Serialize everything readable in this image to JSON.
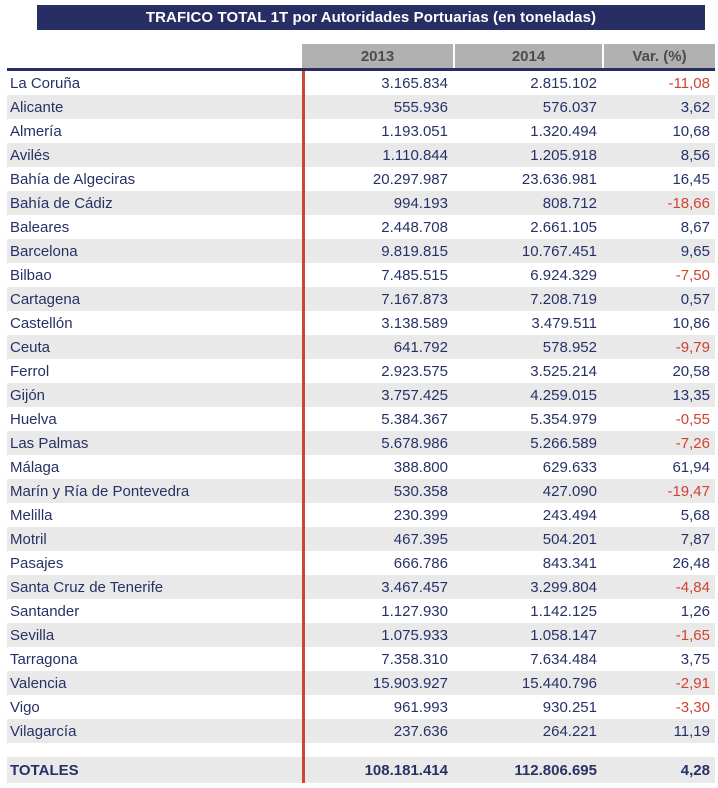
{
  "title": "TRAFICO TOTAL 1T por Autoridades Portuarias (en toneladas)",
  "table": {
    "columns": [
      "2013",
      "2014",
      "Var. (%)"
    ],
    "rows": [
      {
        "name": "La Coruña",
        "y2013": "3.165.834",
        "y2014": "2.815.102",
        "var": "-11,08"
      },
      {
        "name": "Alicante",
        "y2013": "555.936",
        "y2014": "576.037",
        "var": "3,62"
      },
      {
        "name": "Almería",
        "y2013": "1.193.051",
        "y2014": "1.320.494",
        "var": "10,68"
      },
      {
        "name": "Avilés",
        "y2013": "1.110.844",
        "y2014": "1.205.918",
        "var": "8,56"
      },
      {
        "name": "Bahía de Algeciras",
        "y2013": "20.297.987",
        "y2014": "23.636.981",
        "var": "16,45"
      },
      {
        "name": "Bahía de Cádiz",
        "y2013": "994.193",
        "y2014": "808.712",
        "var": "-18,66"
      },
      {
        "name": "Baleares",
        "y2013": "2.448.708",
        "y2014": "2.661.105",
        "var": "8,67"
      },
      {
        "name": "Barcelona",
        "y2013": "9.819.815",
        "y2014": "10.767.451",
        "var": "9,65"
      },
      {
        "name": "Bilbao",
        "y2013": "7.485.515",
        "y2014": "6.924.329",
        "var": "-7,50"
      },
      {
        "name": "Cartagena",
        "y2013": "7.167.873",
        "y2014": "7.208.719",
        "var": "0,57"
      },
      {
        "name": "Castellón",
        "y2013": "3.138.589",
        "y2014": "3.479.511",
        "var": "10,86"
      },
      {
        "name": "Ceuta",
        "y2013": "641.792",
        "y2014": "578.952",
        "var": "-9,79"
      },
      {
        "name": "Ferrol",
        "y2013": "2.923.575",
        "y2014": "3.525.214",
        "var": "20,58"
      },
      {
        "name": "Gijón",
        "y2013": "3.757.425",
        "y2014": "4.259.015",
        "var": "13,35"
      },
      {
        "name": "Huelva",
        "y2013": "5.384.367",
        "y2014": "5.354.979",
        "var": "-0,55"
      },
      {
        "name": "Las Palmas",
        "y2013": "5.678.986",
        "y2014": "5.266.589",
        "var": "-7,26"
      },
      {
        "name": "Málaga",
        "y2013": "388.800",
        "y2014": "629.633",
        "var": "61,94"
      },
      {
        "name": "Marín y Ría de Pontevedra",
        "y2013": "530.358",
        "y2014": "427.090",
        "var": "-19,47"
      },
      {
        "name": "Melilla",
        "y2013": "230.399",
        "y2014": "243.494",
        "var": "5,68"
      },
      {
        "name": "Motril",
        "y2013": "467.395",
        "y2014": "504.201",
        "var": "7,87"
      },
      {
        "name": "Pasajes",
        "y2013": "666.786",
        "y2014": "843.341",
        "var": "26,48"
      },
      {
        "name": "Santa Cruz de Tenerife",
        "y2013": "3.467.457",
        "y2014": "3.299.804",
        "var": "-4,84"
      },
      {
        "name": "Santander",
        "y2013": "1.127.930",
        "y2014": "1.142.125",
        "var": "1,26"
      },
      {
        "name": "Sevilla",
        "y2013": "1.075.933",
        "y2014": "1.058.147",
        "var": "-1,65"
      },
      {
        "name": "Tarragona",
        "y2013": "7.358.310",
        "y2014": "7.634.484",
        "var": "3,75"
      },
      {
        "name": "Valencia",
        "y2013": "15.903.927",
        "y2014": "15.440.796",
        "var": "-2,91"
      },
      {
        "name": "Vigo",
        "y2013": "961.993",
        "y2014": "930.251",
        "var": "-3,30"
      },
      {
        "name": "Vilagarcía",
        "y2013": "237.636",
        "y2014": "264.221",
        "var": "11,19"
      }
    ],
    "totals": {
      "label": "TOTALES",
      "y2013": "108.181.414",
      "y2014": "112.806.695",
      "var": "4,28"
    }
  },
  "colors": {
    "title_bg": "#262e64",
    "navy_rule": "#262e64",
    "navy_text": "#273166",
    "negative_red": "#d04232",
    "divider_red": "#cf4433",
    "header_bg": "#b1b1b1",
    "header_text": "#4d4d4d",
    "alt_row_bg": "#e9e9e9"
  }
}
